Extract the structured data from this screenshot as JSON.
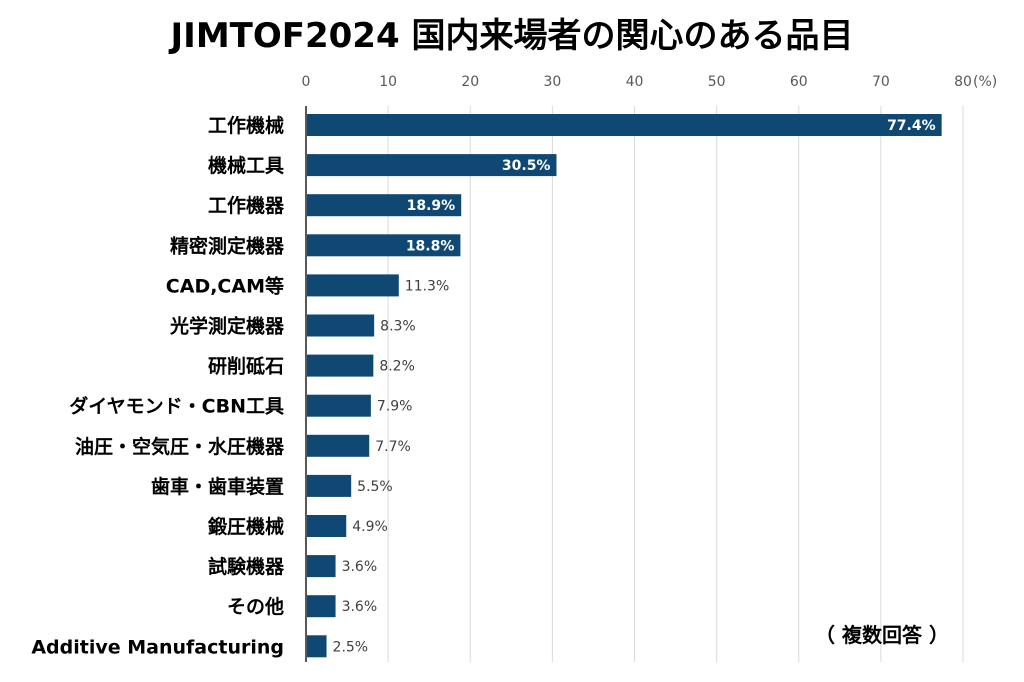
{
  "chart_data": {
    "type": "bar",
    "orientation": "horizontal",
    "title": "JIMTOF2024 国内来場者の関心のある品目",
    "note": "（ 複数回答 ）",
    "x_unit_label": "(%)",
    "xlim": [
      0,
      80
    ],
    "xticks": [
      "0",
      "10",
      "20",
      "30",
      "40",
      "50",
      "60",
      "70",
      "80"
    ],
    "grid": true,
    "bar_color": "#0e4873",
    "categories": [
      "工作機械",
      "機械工具",
      "工作機器",
      "精密測定機器",
      "CAD,CAM等",
      "光学測定機器",
      "研削砥石",
      "ダイヤモンド・CBN工具",
      "油圧・空気圧・水圧機器",
      "歯車・歯車装置",
      "鍛圧機械",
      "試験機器",
      "その他",
      "Additive Manufacturing"
    ],
    "values": [
      77.4,
      30.5,
      18.9,
      18.8,
      11.3,
      8.3,
      8.2,
      7.9,
      7.7,
      5.5,
      4.9,
      3.6,
      3.6,
      2.5
    ],
    "value_labels": [
      "77.4%",
      "30.5%",
      "18.9%",
      "18.8%",
      "11.3%",
      "8.3%",
      "8.2%",
      "7.9%",
      "7.7%",
      "5.5%",
      "4.9%",
      "3.6%",
      "3.6%",
      "2.5%"
    ]
  }
}
